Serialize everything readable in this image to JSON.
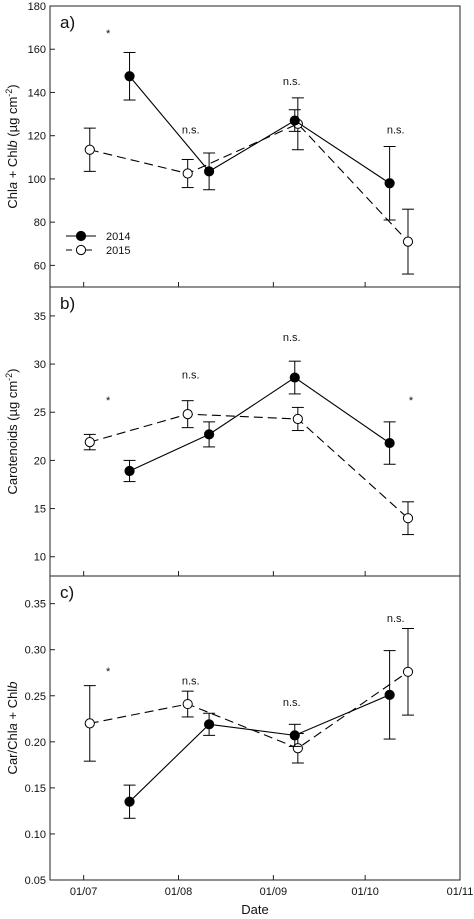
{
  "chart_data": [
    {
      "type": "line",
      "panel_label": "a)",
      "ylabel_parts": [
        {
          "text": "Chl",
          "italic": false
        },
        {
          "text": "a",
          "italic": true
        },
        {
          "text": " + Chl",
          "italic": false
        },
        {
          "text": "b",
          "italic": true
        },
        {
          "text": " (µg cm",
          "italic": false
        },
        {
          "text": "-2",
          "sup": true
        },
        {
          "text": ")",
          "italic": false
        }
      ],
      "ylim": [
        50,
        180
      ],
      "yticks": [
        60,
        80,
        100,
        120,
        140,
        160,
        180
      ],
      "series": [
        {
          "name": "2014",
          "x": [
            "2014-07-16",
            "2014-08-11",
            "2014-09-08",
            "2014-10-09"
          ],
          "y": [
            147.5,
            103.5,
            127,
            98
          ],
          "err": [
            11,
            8.5,
            5,
            17
          ]
        },
        {
          "name": "2015",
          "x": [
            "2015-07-03",
            "2015-08-04",
            "2015-09-09",
            "2015-10-15"
          ],
          "y": [
            113.5,
            102.5,
            125.5,
            71
          ],
          "err": [
            10,
            6.5,
            12,
            15
          ]
        }
      ],
      "annotations": [
        {
          "text": "*",
          "x": "07-09",
          "y": 169
        },
        {
          "text": "n.s.",
          "x": "08-05",
          "y": 121
        },
        {
          "text": "n.s.",
          "x": "09-07",
          "y": 143.5
        },
        {
          "text": "n.s.",
          "x": "10-11",
          "y": 121
        }
      ],
      "legend": {
        "position": "bottom-left",
        "entries": [
          "2014",
          "2015"
        ]
      }
    },
    {
      "type": "line",
      "panel_label": "b)",
      "ylabel_parts": [
        {
          "text": "Carotenoids (µg cm",
          "italic": false
        },
        {
          "text": "-2",
          "sup": true
        },
        {
          "text": ")",
          "italic": false
        }
      ],
      "ylim": [
        8,
        38
      ],
      "yticks": [
        10,
        15,
        20,
        25,
        30,
        35
      ],
      "series": [
        {
          "name": "2014",
          "x": [
            "2014-07-16",
            "2014-08-11",
            "2014-09-08",
            "2014-10-09"
          ],
          "y": [
            18.9,
            22.7,
            28.6,
            21.8
          ],
          "err": [
            1.1,
            1.3,
            1.7,
            2.2
          ]
        },
        {
          "name": "2015",
          "x": [
            "2015-07-03",
            "2015-08-04",
            "2015-09-09",
            "2015-10-15"
          ],
          "y": [
            21.9,
            24.8,
            24.3,
            14
          ],
          "err": [
            0.8,
            1.4,
            1.2,
            1.7
          ]
        }
      ],
      "annotations": [
        {
          "text": "*",
          "x": "07-09",
          "y": 26.6
        },
        {
          "text": "n.s.",
          "x": "08-05",
          "y": 28.5
        },
        {
          "text": "n.s.",
          "x": "09-07",
          "y": 32.4
        },
        {
          "text": "*",
          "x": "10-16",
          "y": 26.6
        }
      ]
    },
    {
      "type": "line",
      "panel_label": "c)",
      "ylabel_parts": [
        {
          "text": "Car/Chl",
          "italic": false
        },
        {
          "text": "a",
          "italic": true
        },
        {
          "text": " + Chl",
          "italic": false
        },
        {
          "text": "b",
          "italic": true
        }
      ],
      "ylim": [
        0.05,
        0.38
      ],
      "yticks": [
        0.05,
        0.1,
        0.15,
        0.2,
        0.25,
        0.3,
        0.35
      ],
      "series": [
        {
          "name": "2014",
          "x": [
            "2014-07-16",
            "2014-08-11",
            "2014-09-08",
            "2014-10-09"
          ],
          "y": [
            0.135,
            0.219,
            0.207,
            0.251
          ],
          "err": [
            0.018,
            0.012,
            0.012,
            0.048
          ]
        },
        {
          "name": "2015",
          "x": [
            "2015-07-03",
            "2015-08-04",
            "2015-09-09",
            "2015-10-15"
          ],
          "y": [
            0.22,
            0.241,
            0.193,
            0.276
          ],
          "err": [
            0.041,
            0.014,
            0.016,
            0.047
          ]
        }
      ],
      "annotations": [
        {
          "text": "*",
          "x": "07-09",
          "y": 0.28
        },
        {
          "text": "n.s.",
          "x": "08-05",
          "y": 0.262
        },
        {
          "text": "n.s.",
          "x": "09-07",
          "y": 0.239
        },
        {
          "text": "n.s.",
          "x": "10-11",
          "y": 0.33
        }
      ]
    }
  ],
  "x_axis": {
    "label": "Date",
    "ticks": [
      {
        "label": "01/07",
        "value": "07-01"
      },
      {
        "label": "01/08",
        "value": "08-01"
      },
      {
        "label": "01/09",
        "value": "09-01"
      },
      {
        "label": "01/10",
        "value": "10-01"
      },
      {
        "label": "01/11",
        "value": "11-01"
      }
    ],
    "range": [
      "06-20",
      "11-01"
    ]
  },
  "colors": {
    "series_2014": "#000000",
    "series_2015": "#ffffff",
    "axes": "#222222"
  }
}
